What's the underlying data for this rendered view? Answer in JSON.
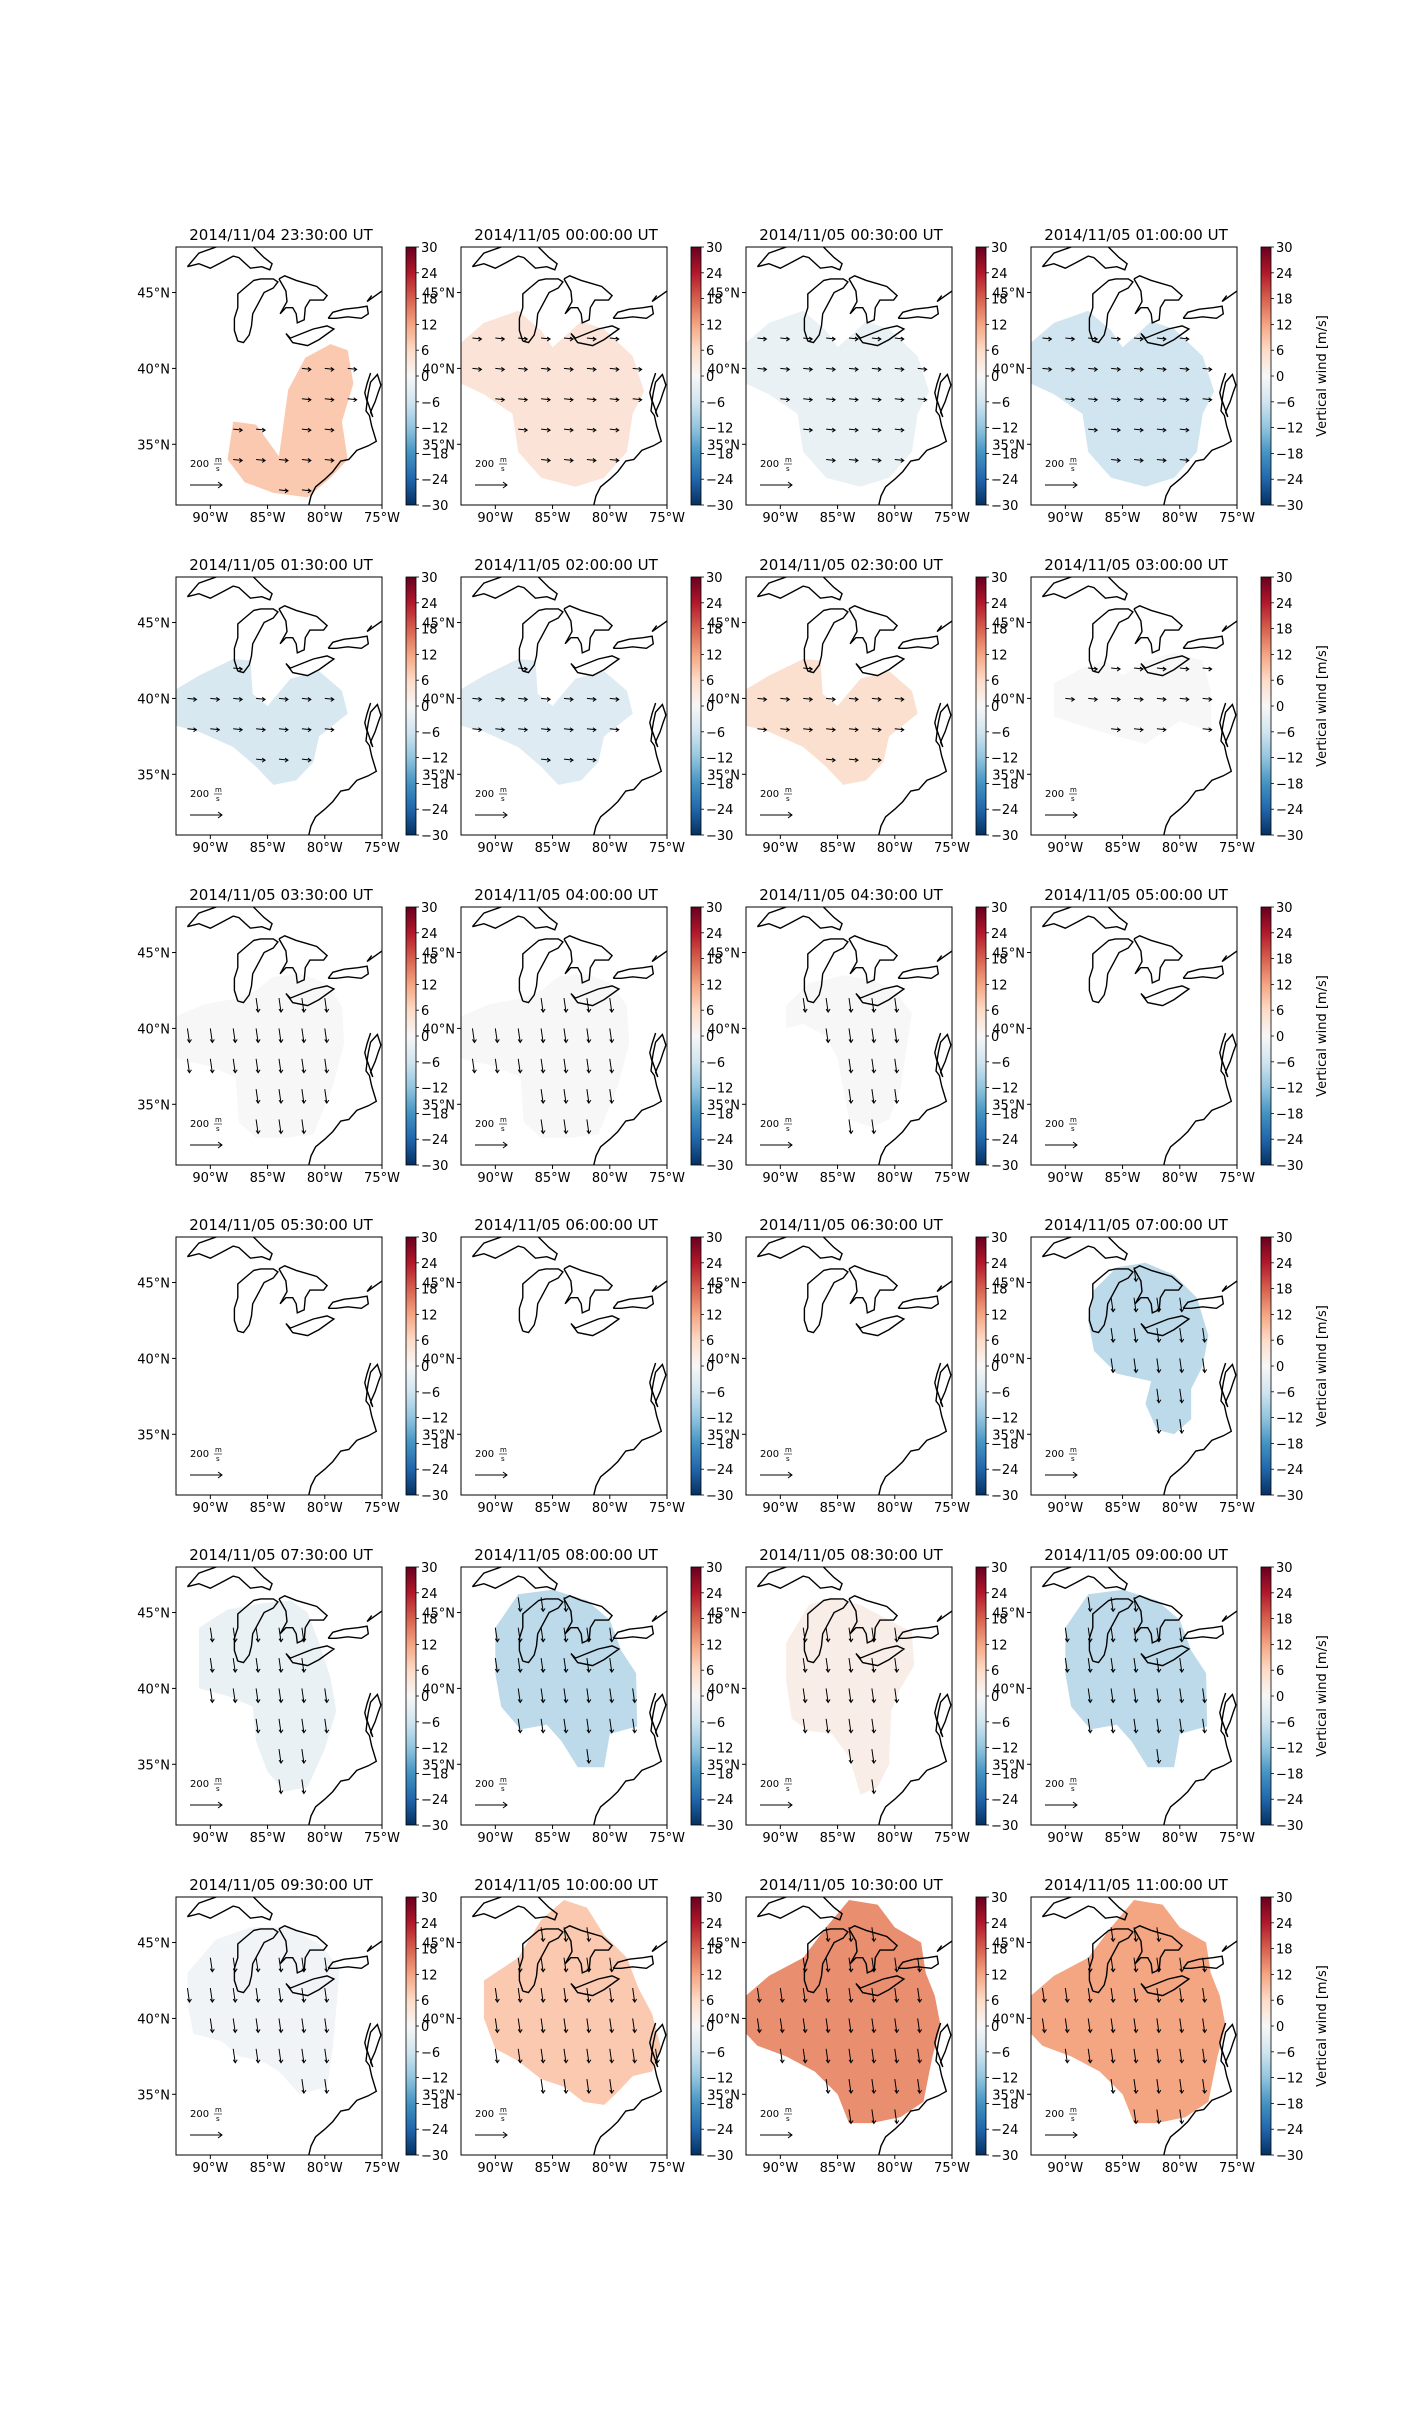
{
  "colorbar": {
    "ticks": [
      "30",
      "24",
      "18",
      "12",
      "6",
      "0",
      "−6",
      "−12",
      "−18",
      "−24",
      "−30"
    ],
    "label": "Vertical wind [m/s]",
    "colormap": [
      "#053061",
      "#2166ac",
      "#4393c3",
      "#92c5de",
      "#d1e5f0",
      "#f7f7f7",
      "#fddbc7",
      "#f4a582",
      "#d6604d",
      "#b2182b",
      "#67001f"
    ]
  },
  "axes": {
    "lon_ticks": [
      "90°W",
      "85°W",
      "80°W",
      "75°W"
    ],
    "lat_ticks": [
      "45°N",
      "40°N",
      "35°N"
    ]
  },
  "scale": {
    "magnitude": "200",
    "unit_num": "m",
    "unit_den": "s"
  },
  "panels": [
    {
      "title": "2014/11/04 23:30:00 UT",
      "vertical_wind": 8,
      "region": "A",
      "arrows": "east"
    },
    {
      "title": "2014/11/05 00:00:00 UT",
      "vertical_wind": 4,
      "region": "B",
      "arrows": "east"
    },
    {
      "title": "2014/11/05 00:30:00 UT",
      "vertical_wind": -2,
      "region": "B",
      "arrows": "east"
    },
    {
      "title": "2014/11/05 01:00:00 UT",
      "vertical_wind": -6,
      "region": "B",
      "arrows": "east"
    },
    {
      "title": "2014/11/05 01:30:00 UT",
      "vertical_wind": -5,
      "region": "C",
      "arrows": "east"
    },
    {
      "title": "2014/11/05 02:00:00 UT",
      "vertical_wind": -4,
      "region": "C",
      "arrows": "east"
    },
    {
      "title": "2014/11/05 02:30:00 UT",
      "vertical_wind": 5,
      "region": "C",
      "arrows": "east"
    },
    {
      "title": "2014/11/05 03:00:00 UT",
      "vertical_wind": 0,
      "region": "D",
      "arrows": "east"
    },
    {
      "title": "2014/11/05 03:30:00 UT",
      "vertical_wind": 0,
      "region": "E",
      "arrows": "south"
    },
    {
      "title": "2014/11/05 04:00:00 UT",
      "vertical_wind": 0,
      "region": "E",
      "arrows": "south"
    },
    {
      "title": "2014/11/05 04:30:00 UT",
      "vertical_wind": 0,
      "region": "F",
      "arrows": "south"
    },
    {
      "title": "2014/11/05 05:00:00 UT",
      "vertical_wind": null,
      "region": "none",
      "arrows": "none"
    },
    {
      "title": "2014/11/05 05:30:00 UT",
      "vertical_wind": null,
      "region": "none",
      "arrows": "none"
    },
    {
      "title": "2014/11/05 06:00:00 UT",
      "vertical_wind": null,
      "region": "none",
      "arrows": "none"
    },
    {
      "title": "2014/11/05 06:30:00 UT",
      "vertical_wind": null,
      "region": "none",
      "arrows": "none"
    },
    {
      "title": "2014/11/05 07:00:00 UT",
      "vertical_wind": -8,
      "region": "G",
      "arrows": "south"
    },
    {
      "title": "2014/11/05 07:30:00 UT",
      "vertical_wind": -2,
      "region": "H",
      "arrows": "south"
    },
    {
      "title": "2014/11/05 08:00:00 UT",
      "vertical_wind": -8,
      "region": "I",
      "arrows": "south"
    },
    {
      "title": "2014/11/05 08:30:00 UT",
      "vertical_wind": 2,
      "region": "J",
      "arrows": "south"
    },
    {
      "title": "2014/11/05 09:00:00 UT",
      "vertical_wind": -8,
      "region": "I",
      "arrows": "south"
    },
    {
      "title": "2014/11/05 09:30:00 UT",
      "vertical_wind": -1,
      "region": "K",
      "arrows": "south"
    },
    {
      "title": "2014/11/05 10:00:00 UT",
      "vertical_wind": 8,
      "region": "L",
      "arrows": "south"
    },
    {
      "title": "2014/11/05 10:30:00 UT",
      "vertical_wind": 14,
      "region": "M",
      "arrows": "south"
    },
    {
      "title": "2014/11/05 11:00:00 UT",
      "vertical_wind": 12,
      "region": "M",
      "arrows": "south"
    }
  ]
}
